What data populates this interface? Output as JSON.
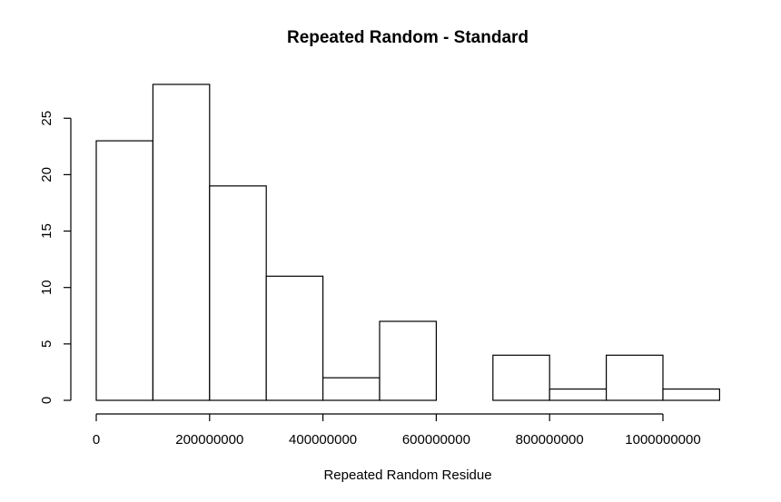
{
  "chart_data": {
    "type": "bar",
    "title": "Repeated Random - Standard",
    "xlabel": "Repeated Random Residue",
    "ylabel": "",
    "bins": [
      [
        0,
        100000000
      ],
      [
        100000000,
        200000000
      ],
      [
        200000000,
        300000000
      ],
      [
        300000000,
        400000000
      ],
      [
        400000000,
        500000000
      ],
      [
        500000000,
        600000000
      ],
      [
        600000000,
        700000000
      ],
      [
        700000000,
        800000000
      ],
      [
        800000000,
        900000000
      ],
      [
        900000000,
        1000000000
      ],
      [
        1000000000,
        1100000000
      ]
    ],
    "values": [
      23,
      28,
      19,
      11,
      2,
      7,
      0,
      4,
      1,
      4,
      1
    ],
    "xticks": [
      0,
      200000000,
      400000000,
      600000000,
      800000000,
      1000000000
    ],
    "xtick_labels": [
      "0",
      "200000000",
      "400000000",
      "600000000",
      "800000000",
      "1000000000"
    ],
    "yticks": [
      0,
      5,
      10,
      15,
      20,
      25
    ],
    "ytick_labels": [
      "0",
      "5",
      "10",
      "15",
      "20",
      "25"
    ],
    "xlim": [
      0,
      1100000000
    ],
    "ylim": [
      0,
      28
    ],
    "grid": false,
    "bar_fill": "#ffffff",
    "bar_stroke": "#000000"
  }
}
